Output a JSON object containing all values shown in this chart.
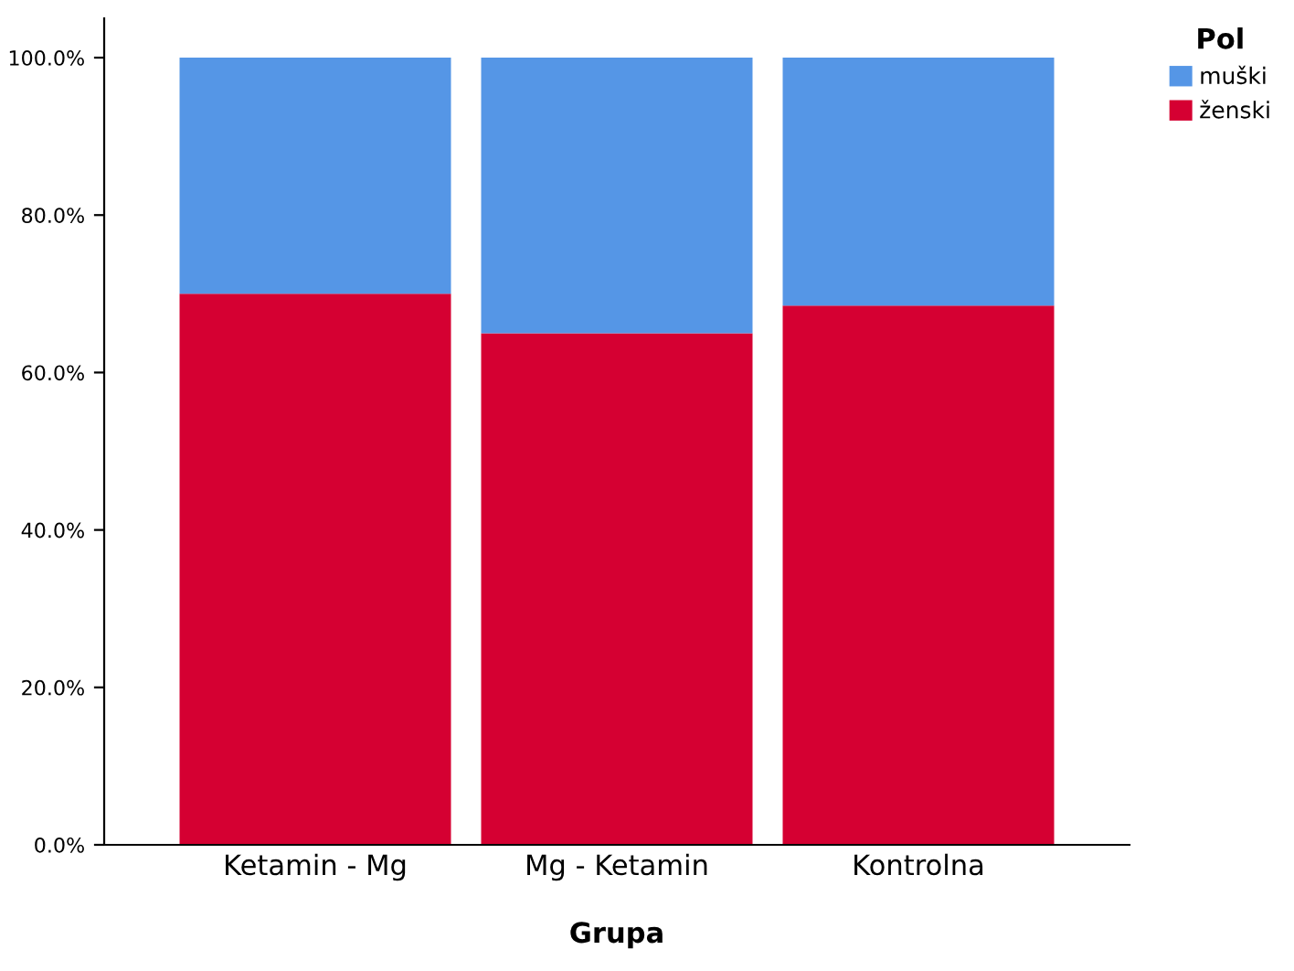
{
  "chart_data": {
    "type": "bar",
    "stacked": true,
    "xlabel": "Grupa",
    "legend_title": "Pol",
    "legend": "top right",
    "categories": [
      "Ketamin - Mg",
      "Mg - Ketamin",
      "Kontrolna"
    ],
    "series": [
      {
        "name": "ženski",
        "color": "#d50032",
        "values": [
          70,
          65,
          68.5
        ]
      },
      {
        "name": "muški",
        "color": "#5596e6",
        "values": [
          30,
          35,
          31.5
        ]
      }
    ],
    "ylim": [
      0,
      105
    ],
    "yticks": [
      {
        "value": 0,
        "label": "0.0%"
      },
      {
        "value": 20,
        "label": "20.0%"
      },
      {
        "value": 40,
        "label": "40.0%"
      },
      {
        "value": 60,
        "label": "60.0%"
      },
      {
        "value": 80,
        "label": "80.0%"
      },
      {
        "value": 100,
        "label": "100.0%"
      }
    ],
    "grid": false
  }
}
